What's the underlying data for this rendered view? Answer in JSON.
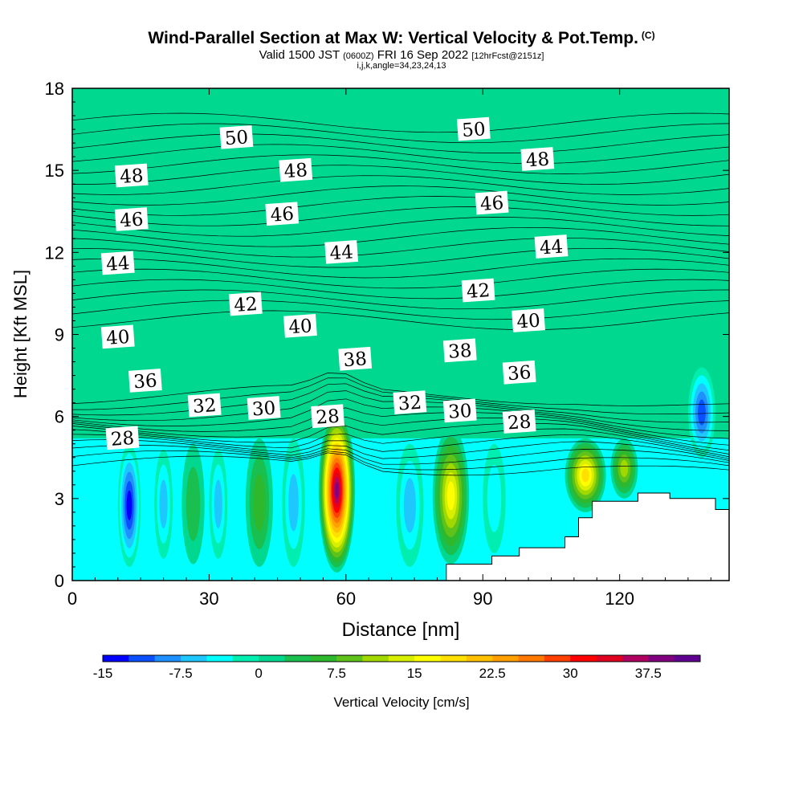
{
  "header": {
    "title": "Wind-Parallel Section at Max W: Vertical Velocity & Pot.Temp.",
    "copyright": "(C)",
    "subtitle_main": "Valid 1500 JST",
    "subtitle_utc": "(0600Z)",
    "subtitle_date": "FRI 16 Sep 2022",
    "subtitle_fcst": "[12hrFcst@2151z]",
    "indices": "i,j,k,angle=34,23,24,13"
  },
  "chart_data": {
    "type": "heatmap",
    "title": "Wind-Parallel Section at Max W: Vertical Velocity & Pot.Temp.",
    "xlabel": "Distance [nm]",
    "ylabel": "Height [Kft MSL]",
    "xlim": [
      0,
      144
    ],
    "ylim": [
      0,
      18
    ],
    "x_ticks": [
      "0",
      "30",
      "60",
      "90",
      "120"
    ],
    "y_ticks": [
      "0",
      "3",
      "6",
      "9",
      "12",
      "15",
      "18"
    ],
    "colorbar": {
      "label": "Vertical Velocity [cm/s]",
      "tick_labels": [
        "-15",
        "-7.5",
        "0",
        "7.5",
        "15",
        "22.5",
        "30",
        "37.5"
      ],
      "levels": [
        -15,
        -12.5,
        -10,
        -7.5,
        -5,
        -2.5,
        0,
        2.5,
        5,
        7.5,
        10,
        12.5,
        15,
        17.5,
        20,
        22.5,
        25,
        27.5,
        30,
        32.5,
        35,
        37.5,
        40
      ],
      "colors": [
        "#0000ff",
        "#0a50ff",
        "#1e90ff",
        "#1ec8ff",
        "#00ffff",
        "#00eeb0",
        "#00d890",
        "#19c050",
        "#2eb82e",
        "#5ec21a",
        "#a0d800",
        "#d8f000",
        "#ffff00",
        "#ffe000",
        "#ffc000",
        "#ffa000",
        "#ff7800",
        "#ff4000",
        "#ff0000",
        "#e00020",
        "#b00060",
        "#80007f",
        "#600090"
      ]
    },
    "velocity_cells": [
      {
        "x": [
          10,
          15
        ],
        "y": [
          0.5,
          5.0
        ],
        "w_peak": -15
      },
      {
        "x": [
          18,
          22
        ],
        "y": [
          0.8,
          4.8
        ],
        "w_peak": -8
      },
      {
        "x": [
          24,
          29
        ],
        "y": [
          0.6,
          5.0
        ],
        "w_peak": 5
      },
      {
        "x": [
          30,
          34
        ],
        "y": [
          0.8,
          4.8
        ],
        "w_peak": -7
      },
      {
        "x": [
          38,
          44
        ],
        "y": [
          0.5,
          5.2
        ],
        "w_peak": 7.5
      },
      {
        "x": [
          46,
          51
        ],
        "y": [
          0.5,
          5.2
        ],
        "w_peak": -7
      },
      {
        "x": [
          54,
          62
        ],
        "y": [
          0.3,
          6.3
        ],
        "w_peak": 40
      },
      {
        "x": [
          71,
          77
        ],
        "y": [
          0.5,
          5.0
        ],
        "w_peak": -8
      },
      {
        "x": [
          79,
          87
        ],
        "y": [
          0.6,
          5.6
        ],
        "w_peak": 17.5
      },
      {
        "x": [
          90,
          95
        ],
        "y": [
          1.0,
          5.0
        ],
        "w_peak": -5
      },
      {
        "x": [
          108,
          117
        ],
        "y": [
          2.5,
          5.2
        ],
        "w_peak": 20
      },
      {
        "x": [
          118,
          124
        ],
        "y": [
          3.0,
          5.2
        ],
        "w_peak": 12.5
      },
      {
        "x": [
          135,
          141
        ],
        "y": [
          4.5,
          7.8
        ],
        "w_peak": -12
      }
    ],
    "terrain": [
      [
        0,
        0
      ],
      [
        82,
        0
      ],
      [
        82,
        0.6
      ],
      [
        92,
        0.6
      ],
      [
        92,
        0.9
      ],
      [
        98,
        0.9
      ],
      [
        98,
        1.2
      ],
      [
        108,
        1.2
      ],
      [
        108,
        1.6
      ],
      [
        111,
        1.6
      ],
      [
        111,
        2.3
      ],
      [
        114,
        2.3
      ],
      [
        114,
        2.9
      ],
      [
        124,
        2.9
      ],
      [
        124,
        3.2
      ],
      [
        131,
        3.2
      ],
      [
        131,
        3.0
      ],
      [
        141,
        3.0
      ],
      [
        141,
        2.6
      ],
      [
        144,
        2.6
      ],
      [
        144,
        0
      ]
    ],
    "theta_labels": [
      {
        "text": "50",
        "x": 36,
        "y": 16.2
      },
      {
        "text": "50",
        "x": 88,
        "y": 16.5
      },
      {
        "text": "48",
        "x": 13,
        "y": 14.8
      },
      {
        "text": "48",
        "x": 49,
        "y": 15.0
      },
      {
        "text": "48",
        "x": 102,
        "y": 15.4
      },
      {
        "text": "46",
        "x": 13,
        "y": 13.2
      },
      {
        "text": "46",
        "x": 46,
        "y": 13.4
      },
      {
        "text": "46",
        "x": 92,
        "y": 13.8
      },
      {
        "text": "44",
        "x": 10,
        "y": 11.6
      },
      {
        "text": "44",
        "x": 59,
        "y": 12.0
      },
      {
        "text": "44",
        "x": 105,
        "y": 12.2
      },
      {
        "text": "42",
        "x": 38,
        "y": 10.1
      },
      {
        "text": "42",
        "x": 89,
        "y": 10.6
      },
      {
        "text": "40",
        "x": 10,
        "y": 8.9
      },
      {
        "text": "40",
        "x": 50,
        "y": 9.3
      },
      {
        "text": "40",
        "x": 100,
        "y": 9.5
      },
      {
        "text": "38",
        "x": 62,
        "y": 8.1
      },
      {
        "text": "38",
        "x": 85,
        "y": 8.4
      },
      {
        "text": "36",
        "x": 16,
        "y": 7.3
      },
      {
        "text": "36",
        "x": 98,
        "y": 7.6
      },
      {
        "text": "32",
        "x": 29,
        "y": 6.4
      },
      {
        "text": "32",
        "x": 74,
        "y": 6.5
      },
      {
        "text": "30",
        "x": 42,
        "y": 6.3
      },
      {
        "text": "30",
        "x": 85,
        "y": 6.2
      },
      {
        "text": "28",
        "x": 11,
        "y": 5.2
      },
      {
        "text": "28",
        "x": 56,
        "y": 6.0
      },
      {
        "text": "28",
        "x": 98,
        "y": 5.8
      }
    ]
  }
}
